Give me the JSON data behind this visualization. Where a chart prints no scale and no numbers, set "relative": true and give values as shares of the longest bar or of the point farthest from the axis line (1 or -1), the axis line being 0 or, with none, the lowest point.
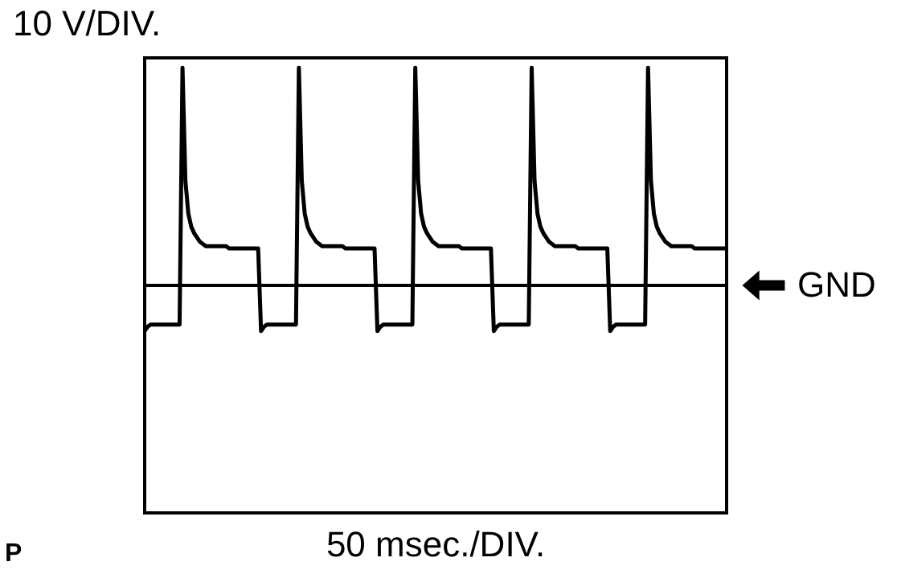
{
  "chart_data": {
    "type": "line",
    "relative": true,
    "ylabel": "10 V/DIV.",
    "annotations": [
      "50 msec./DIV.",
      "P"
    ],
    "line_style": "solid",
    "ref_lines": [
      {
        "axis": "y",
        "value": 0,
        "label": "GND",
        "color": "#000000"
      }
    ],
    "categories": [
      null,
      null,
      null,
      null,
      null,
      null,
      null,
      null,
      null,
      null,
      null,
      null,
      null,
      null,
      null,
      null,
      null,
      null,
      null,
      null,
      null,
      null,
      null,
      null,
      null,
      null,
      null,
      null,
      null,
      null,
      null,
      null,
      null,
      null,
      null,
      null,
      null,
      null,
      null,
      null,
      null,
      null,
      null,
      null,
      null,
      null,
      null,
      null,
      null,
      null,
      null,
      null,
      null,
      null,
      null,
      null,
      null,
      null,
      null,
      null,
      null,
      null,
      null,
      null,
      null,
      null,
      null,
      null,
      null,
      null,
      null,
      null,
      null,
      null,
      null,
      null,
      null,
      null,
      null,
      null,
      null,
      null,
      null,
      null,
      null,
      null,
      null,
      null,
      null,
      null,
      null,
      null,
      null,
      null,
      null,
      null,
      null,
      null,
      null,
      null,
      null,
      null,
      null,
      null,
      null,
      null,
      null,
      null,
      null,
      null,
      null,
      null,
      null,
      null,
      null,
      null,
      null,
      null,
      null,
      null,
      null,
      null,
      null,
      null,
      null,
      null,
      null,
      null,
      null,
      null,
      null,
      null,
      null,
      null,
      null,
      null,
      null,
      null,
      null,
      null,
      null,
      null,
      null,
      null,
      null,
      null,
      null,
      null,
      null,
      null,
      null,
      null,
      null,
      null,
      null,
      null,
      null,
      null,
      null,
      null,
      null,
      null,
      null,
      null,
      null,
      null,
      null,
      null,
      null,
      null,
      null,
      null,
      null,
      null,
      null,
      null,
      null,
      null,
      null,
      null,
      null,
      null,
      null,
      null,
      null,
      null,
      null,
      null,
      null,
      null,
      null,
      null,
      null,
      null,
      null,
      null,
      null,
      null,
      null,
      null,
      null
    ],
    "series": [
      {
        "color": "#000000",
        "values": [
          -0.21,
          -0.19,
          -0.18,
          -0.18,
          -0.18,
          -0.18,
          -0.18,
          -0.18,
          -0.18,
          -0.18,
          -0.18,
          -0.18,
          -0.18,
          1,
          0.48,
          0.33,
          0.27,
          0.24,
          0.22,
          0.2,
          0.19,
          0.18,
          0.18,
          0.18,
          0.18,
          0.18,
          0.18,
          0.18,
          0.18,
          0.17,
          0.17,
          0.17,
          0.17,
          0.17,
          0.17,
          0.17,
          0.17,
          0.17,
          0.17,
          0.17,
          -0.21,
          -0.19,
          -0.18,
          -0.18,
          -0.18,
          -0.18,
          -0.18,
          -0.18,
          -0.18,
          -0.18,
          -0.18,
          -0.18,
          -0.18,
          1,
          0.48,
          0.33,
          0.27,
          0.24,
          0.22,
          0.2,
          0.19,
          0.18,
          0.18,
          0.18,
          0.18,
          0.18,
          0.18,
          0.18,
          0.18,
          0.17,
          0.17,
          0.17,
          0.17,
          0.17,
          0.17,
          0.17,
          0.17,
          0.17,
          0.17,
          0.17,
          -0.21,
          -0.19,
          -0.18,
          -0.18,
          -0.18,
          -0.18,
          -0.18,
          -0.18,
          -0.18,
          -0.18,
          -0.18,
          -0.18,
          -0.18,
          1,
          0.48,
          0.33,
          0.27,
          0.24,
          0.22,
          0.2,
          0.19,
          0.18,
          0.18,
          0.18,
          0.18,
          0.18,
          0.18,
          0.18,
          0.18,
          0.17,
          0.17,
          0.17,
          0.17,
          0.17,
          0.17,
          0.17,
          0.17,
          0.17,
          0.17,
          0.17,
          -0.21,
          -0.19,
          -0.18,
          -0.18,
          -0.18,
          -0.18,
          -0.18,
          -0.18,
          -0.18,
          -0.18,
          -0.18,
          -0.18,
          -0.18,
          1,
          0.48,
          0.33,
          0.27,
          0.24,
          0.22,
          0.2,
          0.19,
          0.18,
          0.18,
          0.18,
          0.18,
          0.18,
          0.18,
          0.18,
          0.18,
          0.17,
          0.17,
          0.17,
          0.17,
          0.17,
          0.17,
          0.17,
          0.17,
          0.17,
          0.17,
          0.17,
          -0.21,
          -0.19,
          -0.18,
          -0.18,
          -0.18,
          -0.18,
          -0.18,
          -0.18,
          -0.18,
          -0.18,
          -0.18,
          -0.18,
          -0.18,
          1,
          0.48,
          0.33,
          0.27,
          0.24,
          0.22,
          0.2,
          0.19,
          0.18,
          0.18,
          0.18,
          0.18,
          0.18,
          0.18,
          0.18,
          0.18,
          0.17,
          0.17,
          0.17,
          0.17,
          0.17,
          0.17,
          0.17,
          0.17,
          0.17,
          0.17,
          0.17,
          0.17
        ]
      }
    ]
  }
}
